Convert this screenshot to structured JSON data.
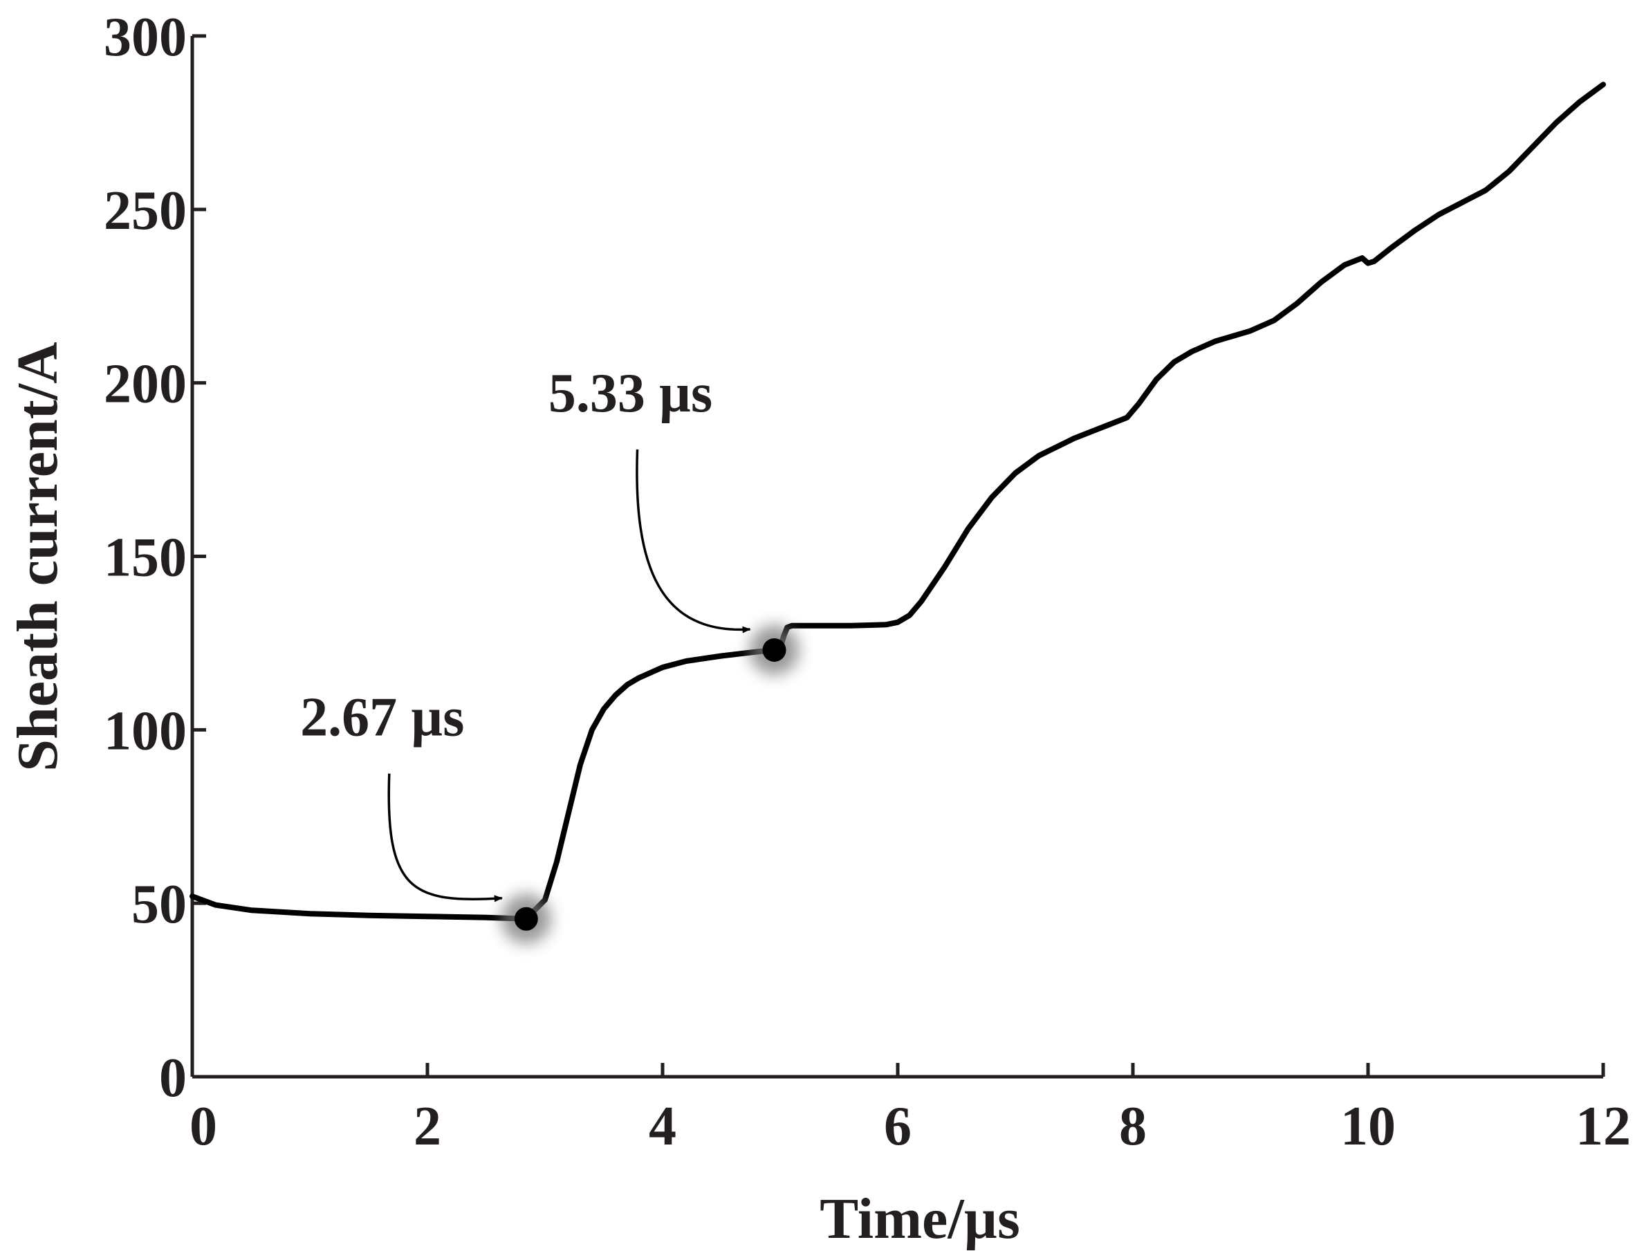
{
  "chart_data": {
    "type": "line",
    "title": "",
    "xlabel": "Time/µs",
    "ylabel": "Sheath current/A",
    "xlim": [
      0,
      12
    ],
    "ylim": [
      0,
      300
    ],
    "xticks": [
      0,
      2,
      4,
      6,
      8,
      10,
      12
    ],
    "yticks": [
      0,
      50,
      100,
      150,
      200,
      250,
      300
    ],
    "grid": false,
    "colors": {
      "line": "#000000",
      "axis": "#231f20",
      "highlight": "#777777"
    },
    "series": [
      {
        "name": "Sheath current",
        "x": [
          0,
          0.2,
          0.5,
          1.0,
          1.5,
          2.0,
          2.5,
          2.84,
          3.0,
          3.1,
          3.2,
          3.3,
          3.4,
          3.5,
          3.6,
          3.7,
          3.8,
          4.0,
          4.2,
          4.5,
          4.8,
          4.95,
          5.0,
          5.03,
          5.06,
          5.1,
          5.3,
          5.6,
          5.9,
          6.0,
          6.1,
          6.2,
          6.4,
          6.6,
          6.8,
          7.0,
          7.2,
          7.5,
          7.8,
          7.95,
          8.05,
          8.2,
          8.35,
          8.5,
          8.7,
          9.0,
          9.2,
          9.4,
          9.6,
          9.8,
          9.95,
          10.0,
          10.05,
          10.2,
          10.4,
          10.6,
          10.8,
          11.0,
          11.2,
          11.4,
          11.6,
          11.8,
          12.0
        ],
        "y": [
          52,
          49.5,
          48,
          47,
          46.5,
          46.2,
          45.9,
          45.5,
          51,
          62,
          76,
          90,
          100,
          106,
          110,
          113,
          115,
          118,
          119.8,
          121.3,
          122.5,
          123,
          123.5,
          127,
          129.5,
          130,
          130,
          130,
          130.3,
          131,
          133,
          137,
          147,
          158,
          167,
          174,
          179,
          184,
          188,
          190,
          194,
          201,
          206,
          209,
          212,
          215,
          218,
          223,
          229,
          234,
          236,
          234.5,
          235,
          239,
          244,
          248.5,
          252,
          255.5,
          261,
          268,
          275,
          281,
          286
        ]
      }
    ],
    "annotations": [
      {
        "label": "2.67 µs",
        "x": 2.84,
        "y": 45.5
      },
      {
        "label": "5.33 µs",
        "x": 4.95,
        "y": 123
      }
    ]
  }
}
